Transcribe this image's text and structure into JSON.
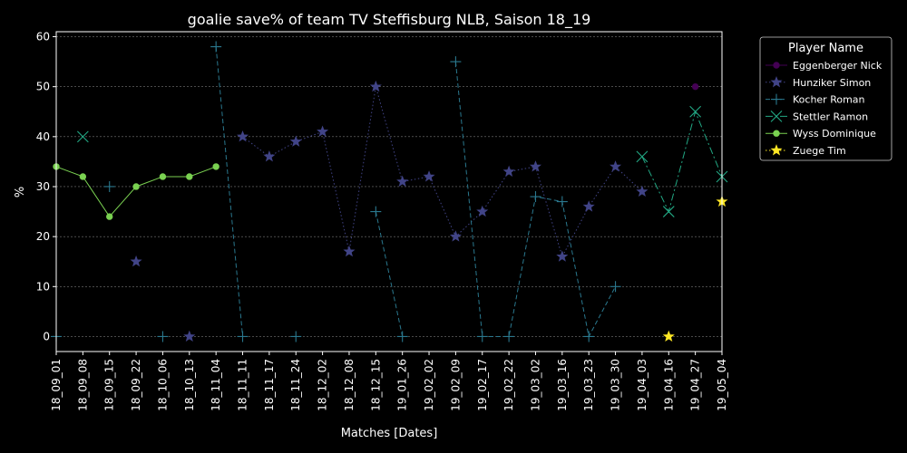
{
  "chart_data": {
    "type": "line",
    "title": "goalie save% of team TV Steffisburg NLB, Saison 18_19",
    "xlabel": "Matches [Dates]",
    "ylabel": "%",
    "ylim": [
      -3,
      61
    ],
    "yticks": [
      0,
      10,
      20,
      30,
      40,
      50,
      60
    ],
    "grid": true,
    "legend": {
      "title": "Player Name",
      "placement": "outside-top-right"
    },
    "categories": [
      "18_09_01",
      "18_09_08",
      "18_09_15",
      "18_09_22",
      "18_10_06",
      "18_10_13",
      "18_11_04",
      "18_11_11",
      "18_11_17",
      "18_11_24",
      "18_12_02",
      "18_12_08",
      "18_12_15",
      "19_01_26",
      "19_02_02",
      "19_02_09",
      "19_02_17",
      "19_02_22",
      "19_03_02",
      "19_03_16",
      "19_03_23",
      "19_03_30",
      "19_04_03",
      "19_04_16",
      "19_04_27",
      "19_05_04"
    ],
    "series": [
      {
        "name": "Eggenberger Nick",
        "color": "#440154",
        "marker": "circle",
        "dash": "solid",
        "values": [
          null,
          null,
          null,
          null,
          null,
          null,
          null,
          null,
          null,
          null,
          null,
          null,
          null,
          null,
          null,
          null,
          null,
          null,
          null,
          null,
          null,
          null,
          null,
          null,
          50,
          null
        ]
      },
      {
        "name": "Hunziker Simon",
        "color": "#414487",
        "marker": "star",
        "dash": "dotted",
        "values": [
          null,
          null,
          null,
          15,
          null,
          0,
          null,
          40,
          36,
          39,
          41,
          17,
          50,
          31,
          32,
          20,
          25,
          33,
          34,
          16,
          26,
          34,
          29,
          null,
          null,
          null
        ]
      },
      {
        "name": "Kocher Roman",
        "color": "#2a788e",
        "marker": "plus",
        "dash": "dashed",
        "values": [
          0,
          null,
          30,
          null,
          0,
          null,
          58,
          0,
          null,
          0,
          null,
          null,
          25,
          0,
          null,
          55,
          0,
          0,
          28,
          27,
          0,
          10,
          null,
          null,
          null,
          null
        ]
      },
      {
        "name": "Stettler Ramon",
        "color": "#22a884",
        "marker": "x",
        "dash": "dashdot",
        "values": [
          null,
          40,
          null,
          null,
          null,
          null,
          null,
          null,
          null,
          null,
          null,
          null,
          null,
          null,
          null,
          null,
          null,
          null,
          null,
          null,
          null,
          null,
          36,
          25,
          45,
          32
        ]
      },
      {
        "name": "Wyss Dominique",
        "color": "#7ad151",
        "marker": "circle",
        "dash": "solid",
        "values": [
          34,
          32,
          24,
          30,
          32,
          32,
          34,
          null,
          null,
          null,
          null,
          null,
          null,
          null,
          null,
          null,
          null,
          null,
          null,
          null,
          null,
          null,
          null,
          null,
          null,
          null
        ]
      },
      {
        "name": "Zuege Tim",
        "color": "#fde725",
        "marker": "star",
        "dash": "dotted",
        "values": [
          null,
          null,
          null,
          null,
          null,
          null,
          null,
          null,
          null,
          null,
          null,
          null,
          null,
          null,
          null,
          null,
          null,
          null,
          null,
          null,
          null,
          null,
          null,
          0,
          null,
          27
        ]
      }
    ]
  }
}
